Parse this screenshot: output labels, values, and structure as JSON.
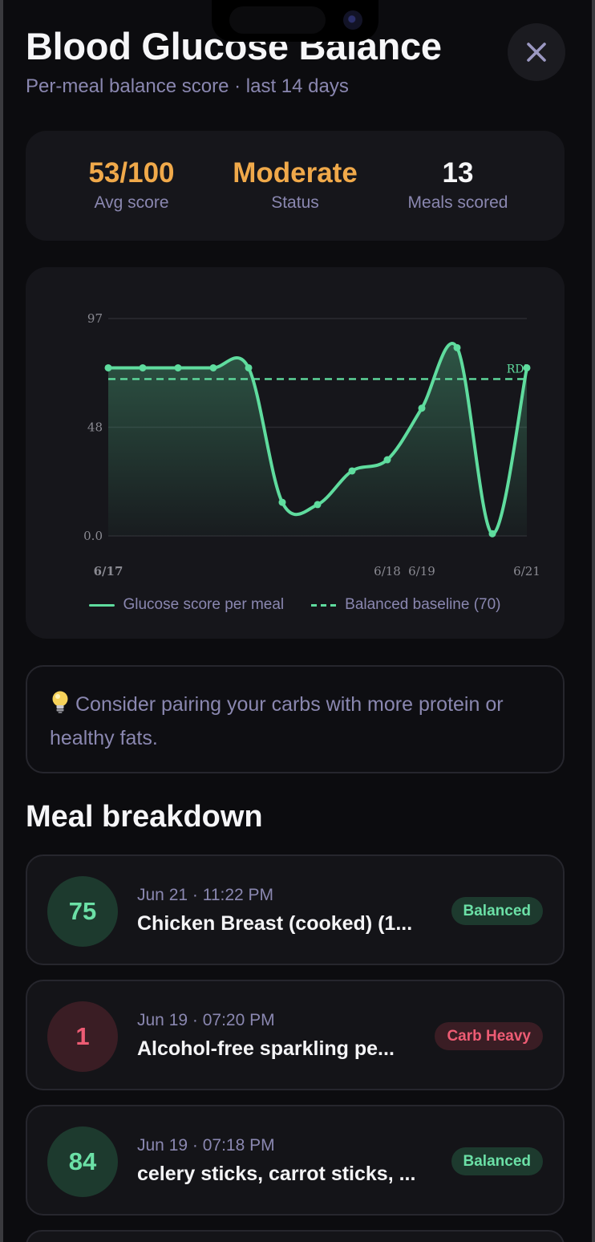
{
  "header": {
    "title": "Blood Glucose Balance",
    "subtitle": "Per-meal balance score · last 14 days",
    "close_icon": "close-icon"
  },
  "stats": [
    {
      "value": "53/100",
      "label": "Avg score",
      "color": "#f0a94a"
    },
    {
      "value": "Moderate",
      "label": "Status",
      "color": "#f0a94a"
    },
    {
      "value": "13",
      "label": "Meals scored",
      "color": "#f6f6f8"
    }
  ],
  "chart_data": {
    "type": "area",
    "y_ticks": [
      "97",
      "48",
      "0.0"
    ],
    "x_ticks": [
      "6/17",
      "6/18",
      "6/19",
      "6/21"
    ],
    "ylim": [
      0,
      97
    ],
    "baseline": {
      "value": 70,
      "label": "RDI"
    },
    "series": [
      {
        "name": "Glucose score per meal",
        "values": [
          75,
          75,
          75,
          75,
          75,
          15,
          14,
          29,
          34,
          57,
          84,
          1,
          75
        ]
      }
    ],
    "legend": [
      {
        "label": "Glucose score per meal",
        "style": "solid"
      },
      {
        "label": "Balanced baseline (70)",
        "style": "dashed"
      }
    ],
    "color": "#5fdc9e"
  },
  "tip": {
    "icon": "lightbulb-icon",
    "text": "Consider pairing your carbs with more protein or healthy fats."
  },
  "meals_section": {
    "title": "Meal breakdown",
    "meals": [
      {
        "score": "75",
        "time": "Jun 21 · 11:22 PM",
        "name": "Chicken Breast (cooked) (1...",
        "badge": "Balanced",
        "kind": "good"
      },
      {
        "score": "1",
        "time": "Jun 19 · 07:20 PM",
        "name": "Alcohol-free sparkling pe...",
        "badge": "Carb Heavy",
        "kind": "bad"
      },
      {
        "score": "84",
        "time": "Jun 19 · 07:18 PM",
        "name": "celery sticks, carrot sticks, ...",
        "badge": "Balanced",
        "kind": "good"
      }
    ]
  }
}
